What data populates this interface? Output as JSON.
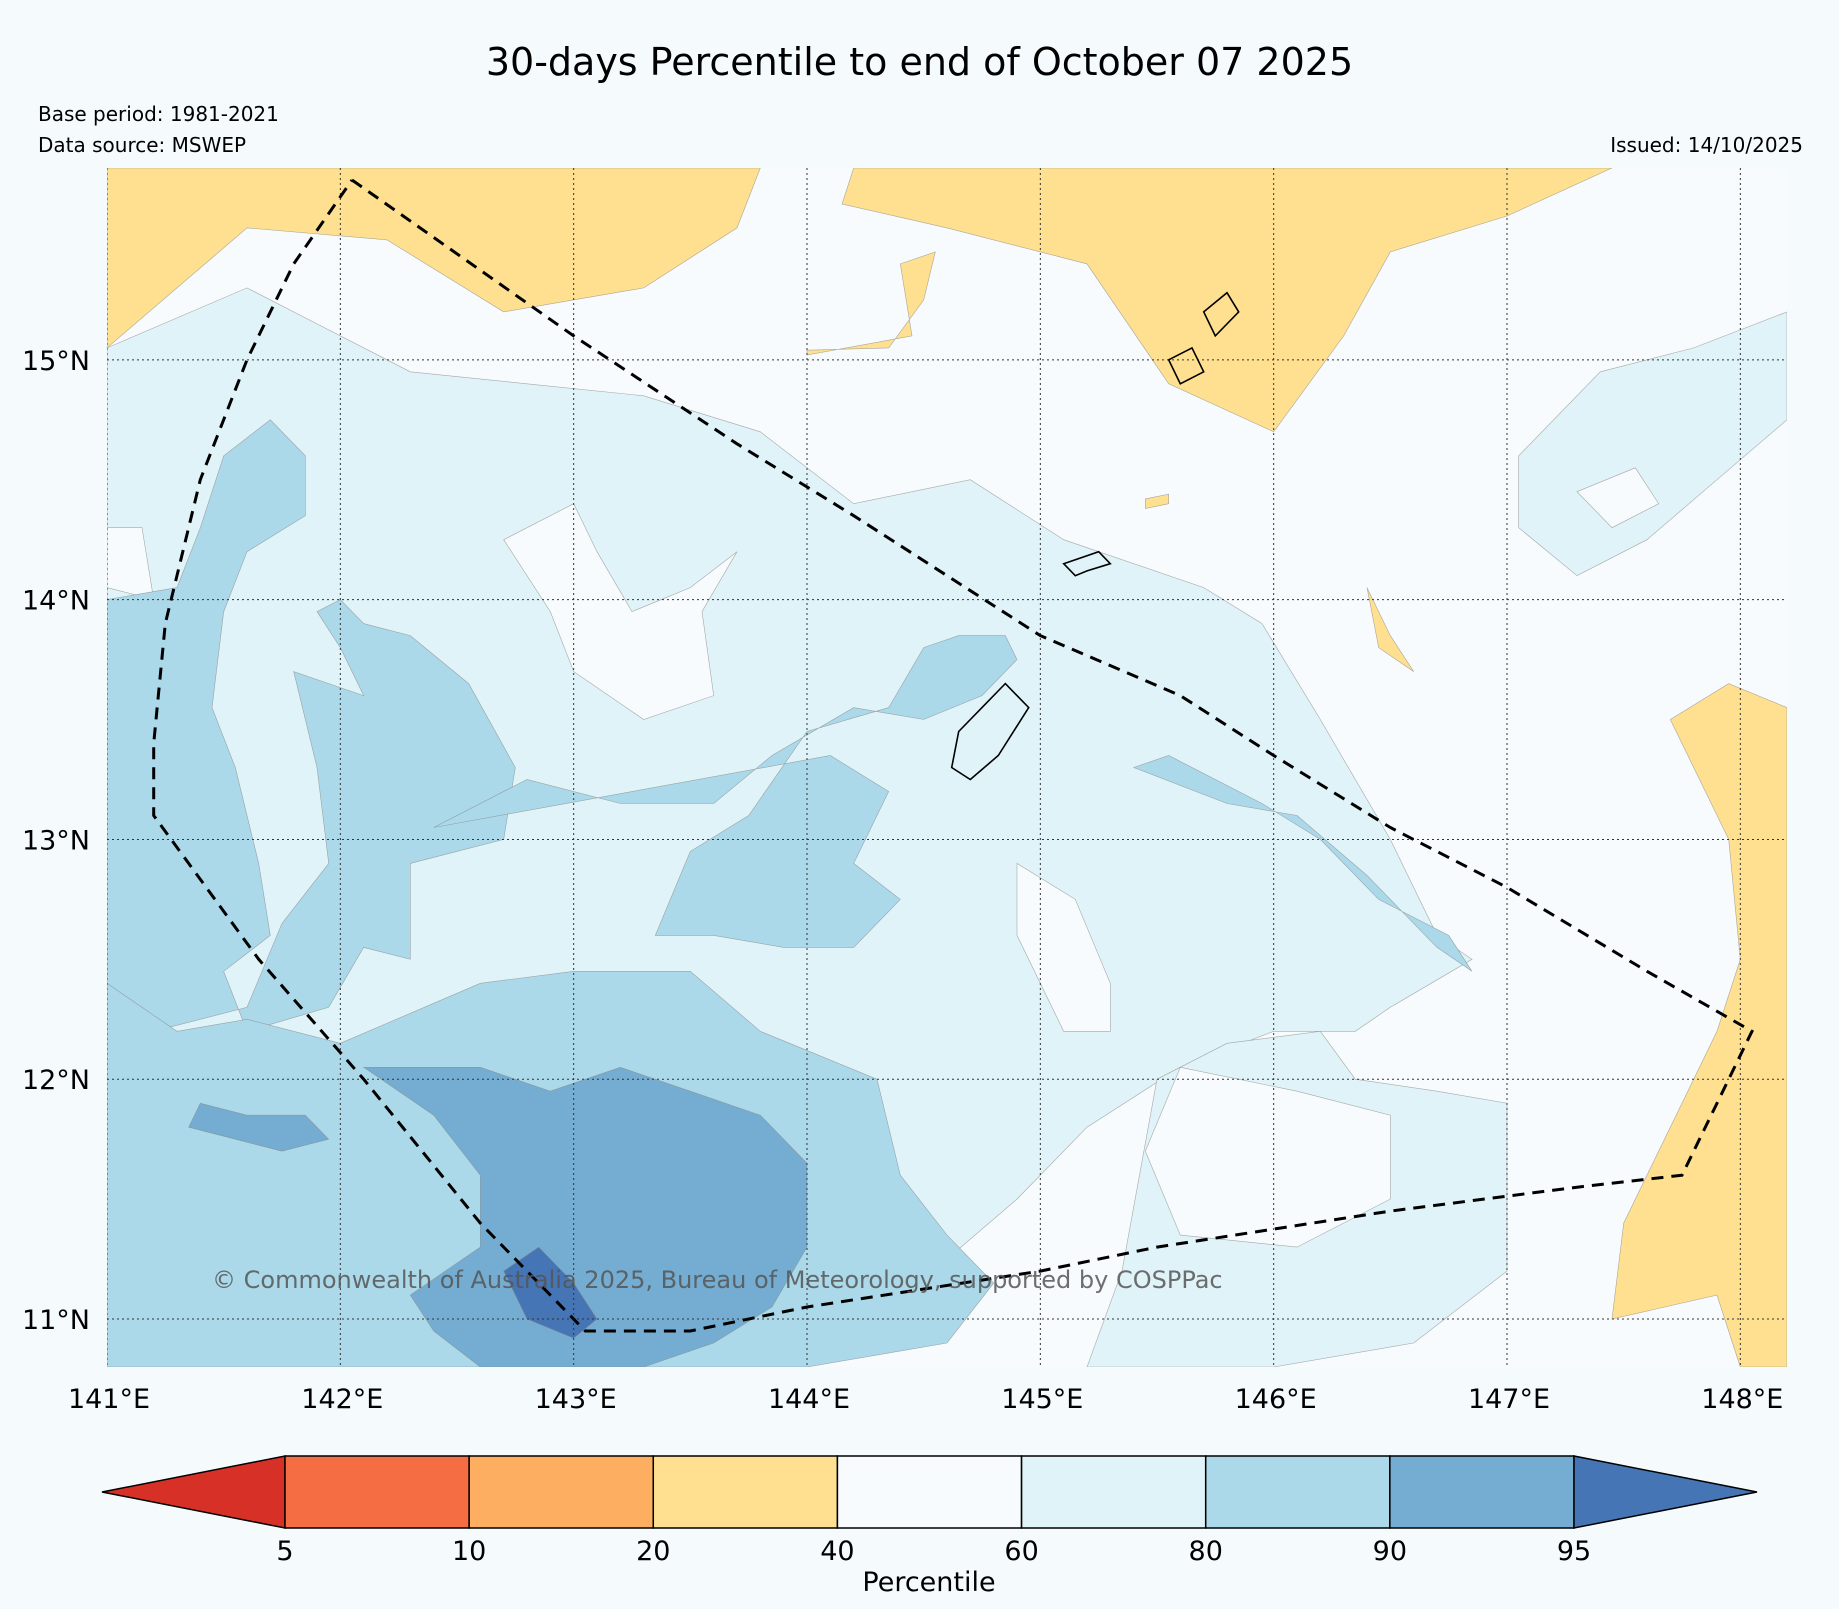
{
  "title": "30-days Percentile to end of October 07 2025",
  "base_period": "Base period: 1981-2021",
  "data_source": "Data source: MSWEP",
  "issued": "Issued: 14/10/2025",
  "copyright": "© Commonwealth of Australia 2025, Bureau of Meteorology, supported by COSPPac",
  "colorbar_label": "Percentile",
  "extent": {
    "lon_min": 141.0,
    "lon_max": 148.2,
    "lat_min": 10.8,
    "lat_max": 15.8
  },
  "lon_ticks": [
    {
      "value": 141,
      "label": "141°E"
    },
    {
      "value": 142,
      "label": "142°E"
    },
    {
      "value": 143,
      "label": "143°E"
    },
    {
      "value": 144,
      "label": "144°E"
    },
    {
      "value": 145,
      "label": "145°E"
    },
    {
      "value": 146,
      "label": "146°E"
    },
    {
      "value": 147,
      "label": "147°E"
    },
    {
      "value": 148,
      "label": "148°E"
    }
  ],
  "lat_ticks": [
    {
      "value": 15,
      "label": "15°N"
    },
    {
      "value": 14,
      "label": "14°N"
    },
    {
      "value": 13,
      "label": "13°N"
    },
    {
      "value": 12,
      "label": "12°N"
    },
    {
      "value": 11,
      "label": "11°N"
    }
  ],
  "colorbar": {
    "bounds": [
      "5",
      "10",
      "20",
      "40",
      "60",
      "80",
      "90",
      "95"
    ],
    "colors": [
      "#d73027",
      "#f46d43",
      "#fdae61",
      "#fee090",
      "#f7fbfd",
      "#e0f3f8",
      "#abd9e9",
      "#74add1",
      "#4575b4"
    ]
  },
  "palette": {
    "background": "#f5fbfd",
    "band_40_60": "#f7fbfd"
  },
  "zones": [
    {
      "name": "dry-band-north",
      "category": "20-40",
      "color": "#fee090",
      "poly": [
        [
          141.0,
          15.8
        ],
        [
          143.8,
          15.8
        ],
        [
          143.7,
          15.55
        ],
        [
          143.3,
          15.3
        ],
        [
          142.7,
          15.2
        ],
        [
          142.2,
          15.5
        ],
        [
          141.6,
          15.55
        ],
        [
          141.0,
          15.05
        ]
      ]
    },
    {
      "name": "dry-band-north-east",
      "category": "20-40",
      "color": "#fee090",
      "poly": [
        [
          144.2,
          15.8
        ],
        [
          147.45,
          15.8
        ],
        [
          147.0,
          15.6
        ],
        [
          146.5,
          15.45
        ],
        [
          146.3,
          15.1
        ],
        [
          146.0,
          14.7
        ],
        [
          145.55,
          14.9
        ],
        [
          145.2,
          15.4
        ],
        [
          144.6,
          15.55
        ],
        [
          144.15,
          15.65
        ]
      ]
    },
    {
      "name": "dry-patch-north-central",
      "category": "20-40",
      "color": "#fee090",
      "poly": [
        [
          144.0,
          15.04
        ],
        [
          144.35,
          15.05
        ],
        [
          144.5,
          15.25
        ],
        [
          144.55,
          15.45
        ],
        [
          144.4,
          15.4
        ],
        [
          144.45,
          15.1
        ],
        [
          144.0,
          15.02
        ]
      ]
    },
    {
      "name": "dry-band-east",
      "category": "20-40",
      "color": "#fee090",
      "poly": [
        [
          148.2,
          13.55
        ],
        [
          147.95,
          13.65
        ],
        [
          147.7,
          13.5
        ],
        [
          147.95,
          13.0
        ],
        [
          148.0,
          12.5
        ],
        [
          147.9,
          12.2
        ],
        [
          147.7,
          11.8
        ],
        [
          147.5,
          11.4
        ],
        [
          147.45,
          11.0
        ],
        [
          147.9,
          11.1
        ],
        [
          148.0,
          10.8
        ],
        [
          148.2,
          10.8
        ]
      ]
    },
    {
      "name": "dry-patch-east",
      "category": "20-40",
      "color": "#fee090",
      "poly": [
        [
          146.4,
          14.05
        ],
        [
          146.45,
          13.8
        ],
        [
          146.6,
          13.7
        ],
        [
          146.5,
          13.85
        ]
      ]
    },
    {
      "name": "wet-west",
      "category": "60-80",
      "color": "#e0f3f8",
      "poly": [
        [
          141.0,
          15.05
        ],
        [
          141.6,
          15.3
        ],
        [
          141.9,
          15.15
        ],
        [
          142.3,
          14.95
        ],
        [
          142.8,
          14.9
        ],
        [
          143.3,
          14.85
        ],
        [
          143.8,
          14.7
        ],
        [
          144.2,
          14.4
        ],
        [
          144.7,
          14.5
        ],
        [
          145.1,
          14.25
        ],
        [
          145.7,
          14.05
        ],
        [
          145.95,
          13.9
        ],
        [
          146.2,
          13.5
        ],
        [
          146.5,
          13.0
        ],
        [
          146.7,
          12.6
        ],
        [
          146.85,
          12.5
        ],
        [
          146.5,
          12.3
        ],
        [
          146.35,
          12.2
        ],
        [
          146.0,
          12.2
        ],
        [
          145.6,
          12.05
        ],
        [
          145.2,
          11.8
        ],
        [
          144.9,
          11.5
        ],
        [
          144.6,
          11.25
        ],
        [
          144.2,
          11.05
        ],
        [
          143.8,
          10.8
        ],
        [
          141.0,
          10.8
        ]
      ]
    },
    {
      "name": "wet-east",
      "category": "60-80",
      "color": "#e0f3f8",
      "poly": [
        [
          147.05,
          14.6
        ],
        [
          147.4,
          14.95
        ],
        [
          147.8,
          15.05
        ],
        [
          148.2,
          15.2
        ],
        [
          148.2,
          14.75
        ],
        [
          147.9,
          14.5
        ],
        [
          147.6,
          14.25
        ],
        [
          147.3,
          14.1
        ],
        [
          147.05,
          14.3
        ]
      ]
    },
    {
      "name": "wet-south-east",
      "category": "60-80",
      "color": "#e0f3f8",
      "poly": [
        [
          145.5,
          12.0
        ],
        [
          145.8,
          12.15
        ],
        [
          146.2,
          12.2
        ],
        [
          146.35,
          12.0
        ],
        [
          146.7,
          11.95
        ],
        [
          147.0,
          11.9
        ],
        [
          147.0,
          11.6
        ],
        [
          147.0,
          11.2
        ],
        [
          146.6,
          10.9
        ],
        [
          146.0,
          10.8
        ],
        [
          145.2,
          10.8
        ],
        [
          145.35,
          11.2
        ]
      ]
    },
    {
      "name": "dry-patch-north-island",
      "category": "20-40",
      "color": "#fee090",
      "poly": [
        [
          145.45,
          14.42
        ],
        [
          145.55,
          14.44
        ],
        [
          145.55,
          14.4
        ],
        [
          145.45,
          14.38
        ]
      ]
    },
    {
      "name": "normal-west-mid",
      "category": "40-60",
      "color": "#f7fbfd",
      "poly": [
        [
          141.0,
          14.3
        ],
        [
          141.15,
          14.3
        ],
        [
          141.2,
          14.0
        ],
        [
          141.0,
          14.05
        ]
      ]
    },
    {
      "name": "normal-center",
      "category": "40-60",
      "color": "#f7fbfd",
      "poly": [
        [
          142.7,
          14.25
        ],
        [
          143.0,
          14.4
        ],
        [
          143.1,
          14.2
        ],
        [
          143.25,
          13.95
        ],
        [
          143.5,
          14.05
        ],
        [
          143.7,
          14.2
        ],
        [
          143.55,
          13.95
        ],
        [
          143.6,
          13.6
        ],
        [
          143.3,
          13.5
        ],
        [
          143.0,
          13.7
        ],
        [
          142.9,
          13.95
        ]
      ]
    },
    {
      "name": "normal-center-east",
      "category": "40-60",
      "color": "#f7fbfd",
      "poly": [
        [
          144.9,
          12.9
        ],
        [
          145.15,
          12.75
        ],
        [
          145.3,
          12.4
        ],
        [
          145.3,
          12.2
        ],
        [
          145.1,
          12.2
        ],
        [
          144.9,
          12.6
        ]
      ]
    },
    {
      "name": "normal-south-east",
      "category": "40-60",
      "color": "#f7fbfd",
      "poly": [
        [
          145.6,
          12.05
        ],
        [
          146.1,
          11.95
        ],
        [
          146.5,
          11.85
        ],
        [
          146.5,
          11.5
        ],
        [
          146.1,
          11.3
        ],
        [
          145.6,
          11.35
        ],
        [
          145.45,
          11.7
        ]
      ]
    },
    {
      "name": "normal-north-east",
      "category": "40-60",
      "color": "#f7fbfd",
      "poly": [
        [
          147.3,
          14.45
        ],
        [
          147.55,
          14.55
        ],
        [
          147.65,
          14.4
        ],
        [
          147.45,
          14.3
        ]
      ]
    },
    {
      "name": "heavy-west-strip",
      "category": "80-90",
      "color": "#abd9e9",
      "poly": [
        [
          141.0,
          14.0
        ],
        [
          141.3,
          14.05
        ],
        [
          141.4,
          14.3
        ],
        [
          141.5,
          14.6
        ],
        [
          141.7,
          14.75
        ],
        [
          141.85,
          14.6
        ],
        [
          141.85,
          14.35
        ],
        [
          141.6,
          14.2
        ],
        [
          141.5,
          13.95
        ],
        [
          141.45,
          13.55
        ],
        [
          141.55,
          13.3
        ],
        [
          141.65,
          12.9
        ],
        [
          141.7,
          12.6
        ],
        [
          141.5,
          12.45
        ],
        [
          141.6,
          12.2
        ],
        [
          141.95,
          12.3
        ],
        [
          142.1,
          12.55
        ],
        [
          142.3,
          12.5
        ],
        [
          142.3,
          12.9
        ],
        [
          142.7,
          13.0
        ],
        [
          142.75,
          13.3
        ],
        [
          142.55,
          13.65
        ],
        [
          142.3,
          13.85
        ],
        [
          142.1,
          13.9
        ],
        [
          142.0,
          14.0
        ],
        [
          141.9,
          13.95
        ],
        [
          142.0,
          13.8
        ],
        [
          142.1,
          13.6
        ],
        [
          141.8,
          13.7
        ],
        [
          141.9,
          13.3
        ],
        [
          141.95,
          12.9
        ],
        [
          141.75,
          12.65
        ],
        [
          141.6,
          12.3
        ],
        [
          141.2,
          12.2
        ],
        [
          141.0,
          12.4
        ]
      ]
    },
    {
      "name": "heavy-south",
      "category": "80-90",
      "color": "#abd9e9",
      "poly": [
        [
          141.0,
          12.4
        ],
        [
          141.3,
          12.2
        ],
        [
          141.6,
          12.25
        ],
        [
          142.0,
          12.15
        ],
        [
          142.6,
          12.4
        ],
        [
          143.0,
          12.45
        ],
        [
          143.5,
          12.45
        ],
        [
          143.8,
          12.2
        ],
        [
          144.3,
          12.0
        ],
        [
          144.4,
          11.6
        ],
        [
          144.6,
          11.35
        ],
        [
          144.8,
          11.15
        ],
        [
          144.6,
          10.9
        ],
        [
          144.0,
          10.8
        ],
        [
          141.0,
          10.8
        ]
      ]
    },
    {
      "name": "heavy-center",
      "category": "80-90",
      "color": "#abd9e9",
      "poly": [
        [
          142.4,
          13.05
        ],
        [
          142.8,
          13.25
        ],
        [
          143.2,
          13.15
        ],
        [
          143.6,
          13.15
        ],
        [
          143.85,
          13.35
        ],
        [
          144.2,
          13.55
        ],
        [
          144.5,
          13.5
        ],
        [
          144.75,
          13.6
        ],
        [
          144.9,
          13.75
        ],
        [
          144.85,
          13.85
        ],
        [
          144.65,
          13.85
        ],
        [
          144.5,
          13.8
        ],
        [
          144.35,
          13.55
        ],
        [
          144.0,
          13.45
        ],
        [
          143.75,
          13.1
        ],
        [
          143.5,
          12.95
        ],
        [
          143.35,
          12.6
        ],
        [
          143.6,
          12.6
        ],
        [
          143.9,
          12.55
        ],
        [
          144.2,
          12.55
        ],
        [
          144.4,
          12.75
        ],
        [
          144.2,
          12.9
        ],
        [
          144.35,
          13.2
        ],
        [
          144.1,
          13.35
        ]
      ]
    },
    {
      "name": "heavy-east",
      "category": "80-90",
      "color": "#abd9e9",
      "poly": [
        [
          145.4,
          13.3
        ],
        [
          145.8,
          13.15
        ],
        [
          146.1,
          13.1
        ],
        [
          146.4,
          12.85
        ],
        [
          146.55,
          12.7
        ],
        [
          146.7,
          12.55
        ],
        [
          146.85,
          12.45
        ],
        [
          146.75,
          12.6
        ],
        [
          146.45,
          12.75
        ],
        [
          146.2,
          13.0
        ],
        [
          145.95,
          13.15
        ],
        [
          145.55,
          13.35
        ]
      ]
    },
    {
      "name": "very-heavy-south",
      "category": "90-95",
      "color": "#74add1",
      "poly": [
        [
          141.35,
          11.8
        ],
        [
          141.55,
          11.75
        ],
        [
          141.75,
          11.7
        ],
        [
          141.95,
          11.75
        ],
        [
          141.85,
          11.85
        ],
        [
          141.6,
          11.85
        ],
        [
          141.4,
          11.9
        ]
      ]
    },
    {
      "name": "very-heavy-core",
      "category": "90-95",
      "color": "#74add1",
      "poly": [
        [
          142.1,
          12.05
        ],
        [
          142.6,
          12.05
        ],
        [
          142.9,
          11.95
        ],
        [
          143.2,
          12.05
        ],
        [
          143.5,
          11.95
        ],
        [
          143.8,
          11.85
        ],
        [
          144.0,
          11.65
        ],
        [
          144.0,
          11.3
        ],
        [
          143.85,
          11.05
        ],
        [
          143.6,
          10.9
        ],
        [
          143.3,
          10.8
        ],
        [
          142.6,
          10.8
        ],
        [
          142.4,
          10.95
        ],
        [
          142.3,
          11.1
        ],
        [
          142.6,
          11.3
        ],
        [
          142.6,
          11.6
        ],
        [
          142.4,
          11.85
        ]
      ]
    },
    {
      "name": "extreme-core",
      "category": "95+",
      "color": "#4575b4",
      "poly": [
        [
          142.7,
          11.2
        ],
        [
          142.85,
          11.3
        ],
        [
          143.0,
          11.15
        ],
        [
          143.1,
          11.0
        ],
        [
          143.0,
          10.92
        ],
        [
          142.8,
          11.0
        ]
      ]
    }
  ],
  "dashed_outline": [
    [
      142.05,
      15.75
    ],
    [
      143.0,
      15.1
    ],
    [
      143.7,
      14.65
    ],
    [
      144.2,
      14.35
    ],
    [
      145.0,
      13.85
    ],
    [
      145.6,
      13.6
    ],
    [
      146.0,
      13.35
    ],
    [
      146.5,
      13.05
    ],
    [
      147.0,
      12.8
    ],
    [
      147.6,
      12.45
    ],
    [
      148.05,
      12.2
    ],
    [
      147.75,
      11.6
    ],
    [
      147.3,
      11.55
    ],
    [
      146.5,
      11.45
    ],
    [
      145.5,
      11.3
    ],
    [
      145.0,
      11.2
    ],
    [
      144.0,
      11.05
    ],
    [
      143.5,
      10.95
    ],
    [
      143.05,
      10.95
    ],
    [
      142.6,
      11.4
    ],
    [
      142.1,
      12.0
    ],
    [
      141.65,
      12.5
    ],
    [
      141.2,
      13.1
    ],
    [
      141.2,
      13.4
    ],
    [
      141.25,
      13.9
    ],
    [
      141.4,
      14.5
    ],
    [
      141.6,
      15.0
    ],
    [
      141.8,
      15.4
    ],
    [
      142.05,
      15.75
    ]
  ],
  "islands": [
    {
      "name": "guam",
      "poly": [
        [
          144.85,
          13.65
        ],
        [
          144.95,
          13.55
        ],
        [
          144.82,
          13.35
        ],
        [
          144.7,
          13.25
        ],
        [
          144.62,
          13.3
        ],
        [
          144.65,
          13.45
        ],
        [
          144.75,
          13.55
        ]
      ]
    },
    {
      "name": "rota",
      "poly": [
        [
          145.1,
          14.15
        ],
        [
          145.25,
          14.2
        ],
        [
          145.3,
          14.15
        ],
        [
          145.2,
          14.12
        ],
        [
          145.15,
          14.1
        ]
      ]
    },
    {
      "name": "aguijan-tinian",
      "poly": [
        [
          145.55,
          15.0
        ],
        [
          145.65,
          15.05
        ],
        [
          145.7,
          14.95
        ],
        [
          145.6,
          14.9
        ]
      ]
    },
    {
      "name": "saipan",
      "poly": [
        [
          145.7,
          15.2
        ],
        [
          145.8,
          15.28
        ],
        [
          145.85,
          15.2
        ],
        [
          145.75,
          15.1
        ]
      ]
    }
  ]
}
